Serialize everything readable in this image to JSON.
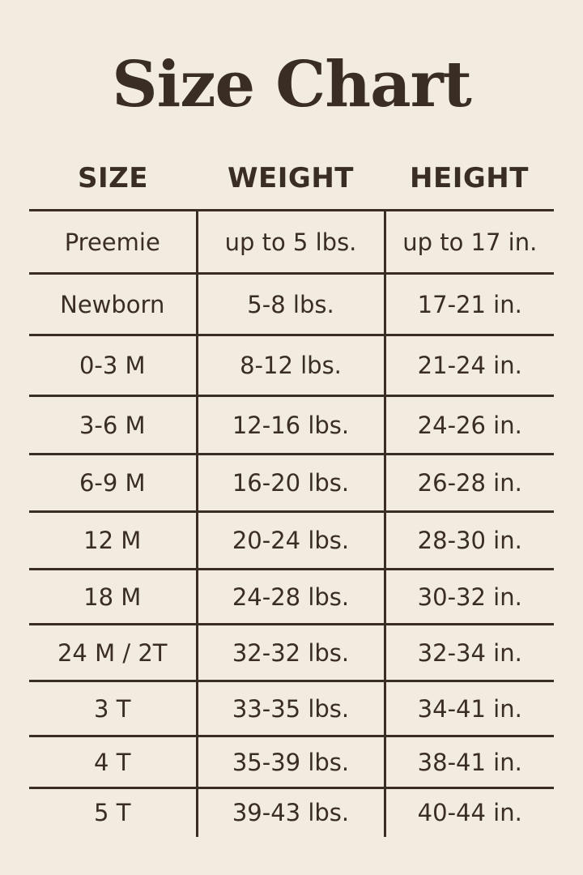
{
  "title": "Size Chart",
  "headers": [
    "SIZE",
    "WEIGHT",
    "HEIGHT"
  ],
  "rows": [
    [
      "Preemie",
      "up to 5 lbs.",
      "up to 17 in."
    ],
    [
      "Newborn",
      "5-8 lbs.",
      "17-21 in."
    ],
    [
      "0-3 M",
      "8-12 lbs.",
      "21-24 in."
    ],
    [
      "3-6 M",
      "12-16 lbs.",
      "24-26 in."
    ],
    [
      "6-9 M",
      "16-20 lbs.",
      "26-28 in."
    ],
    [
      "12 M",
      "20-24 lbs.",
      "28-30 in."
    ],
    [
      "18 M",
      "24-28 lbs.",
      "30-32 in."
    ],
    [
      "24 M / 2T",
      "32-32 lbs.",
      "32-34 in."
    ],
    [
      "3 T",
      "33-35 lbs.",
      "34-41 in."
    ],
    [
      "4 T",
      "35-39 lbs.",
      "38-41 in."
    ],
    [
      "5 T",
      "39-43 lbs.",
      "40-44 in."
    ]
  ],
  "colors": {
    "background": "#f2ebe0",
    "text": "#3a2d24"
  }
}
